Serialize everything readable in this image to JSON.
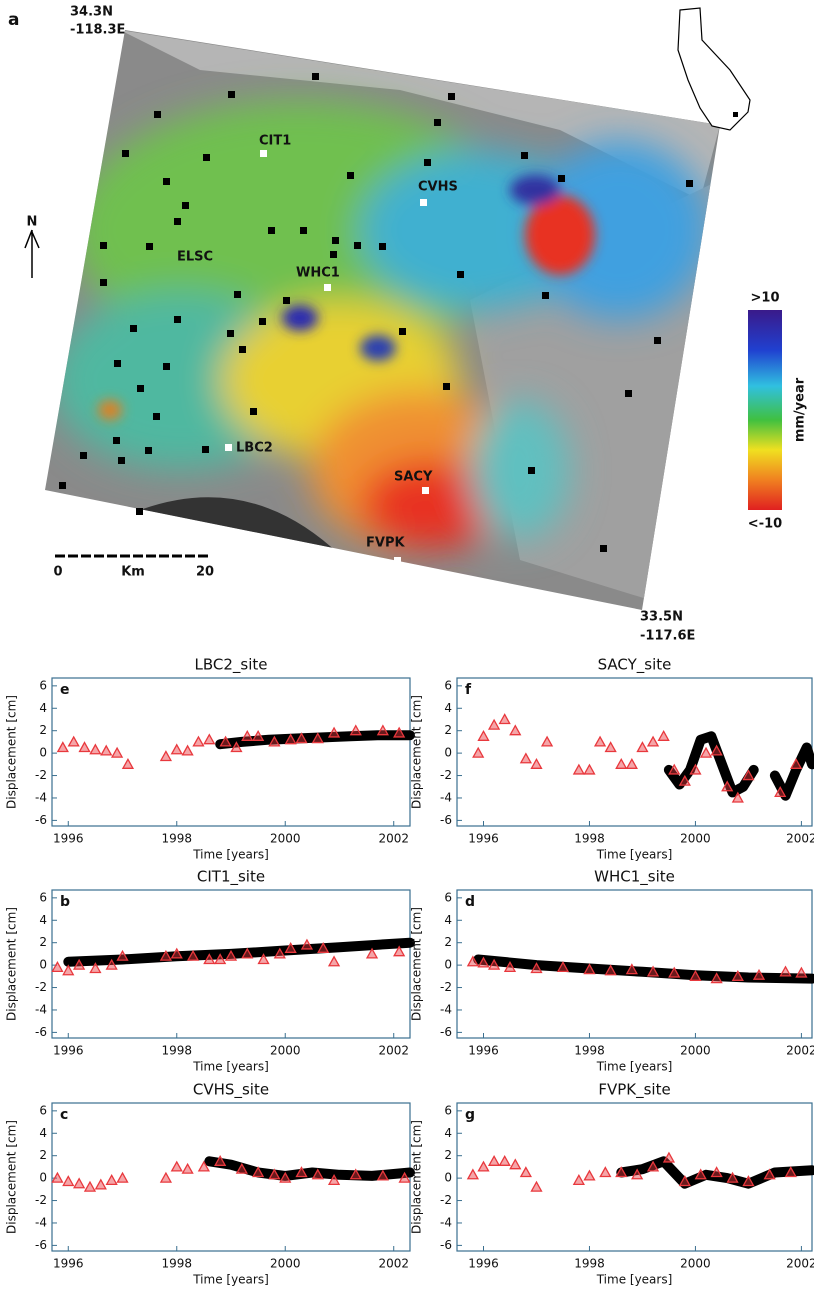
{
  "map": {
    "label": "a",
    "corner_nw": {
      "lat": "34.3N",
      "lon": "-118.3E"
    },
    "corner_se": {
      "lat": "33.5N",
      "lon": "-117.6E"
    },
    "north": "N",
    "colorbar": {
      "max": ">10",
      "min": "<-10",
      "unit": "mm/year"
    },
    "scale": {
      "start": "0",
      "unit": "Km",
      "end": "20"
    },
    "stations": [
      "CIT1",
      "CVHS",
      "ELSC",
      "WHC1",
      "LBC2",
      "SACY",
      "FVPK"
    ]
  },
  "chart_data": [
    {
      "type": "scatter",
      "title": "LBC2_site",
      "panel": "e",
      "x_label": "Time [years]",
      "y_label": "Displacement [cm]",
      "xlim": [
        1995.7,
        2002.3
      ],
      "ylim": [
        -6.5,
        6.7
      ],
      "xticks": [
        1996,
        1998,
        2000,
        2002
      ],
      "yticks": [
        -6,
        -4,
        -2,
        0,
        2,
        4,
        6
      ],
      "series": [
        {
          "marker": "cloud",
          "color": "#000000",
          "x": [
            1998.8,
            1999.2,
            1999.7,
            2000.2,
            2000.7,
            2001.2,
            2001.7,
            2002.3
          ],
          "values": [
            0.8,
            1.0,
            1.2,
            1.3,
            1.4,
            1.5,
            1.6,
            1.6
          ]
        },
        {
          "marker": "triangle",
          "color": "#e8383d",
          "x": [
            1995.9,
            1996.1,
            1996.3,
            1996.5,
            1996.7,
            1996.9,
            1997.1,
            1997.8,
            1998.0,
            1998.2,
            1998.4,
            1998.6,
            1998.9,
            1999.1,
            1999.3,
            1999.5,
            1999.8,
            2000.1,
            2000.3,
            2000.6,
            2000.9,
            2001.3,
            2001.8,
            2002.1
          ],
          "values": [
            0.5,
            1.0,
            0.5,
            0.3,
            0.2,
            0,
            -1.0,
            -0.3,
            0.3,
            0.2,
            1.0,
            1.2,
            1.0,
            0.5,
            1.5,
            1.5,
            1.0,
            1.2,
            1.3,
            1.3,
            1.8,
            2.0,
            2.0,
            1.8
          ]
        }
      ]
    },
    {
      "type": "scatter",
      "title": "SACY_site",
      "panel": "f",
      "x_label": "Time [years]",
      "y_label": "Displacement [cm]",
      "xlim": [
        1995.5,
        2002.2
      ],
      "ylim": [
        -6.5,
        6.7
      ],
      "xticks": [
        1996,
        1998,
        2000,
        2002
      ],
      "yticks": [
        -6,
        -4,
        -2,
        0,
        2,
        4,
        6
      ],
      "series": [
        {
          "marker": "cloud",
          "color": "#000000",
          "x": [
            1999.5,
            1999.7,
            1999.9,
            2000.1,
            2000.3,
            2000.5,
            2000.7,
            2000.9,
            2001.1,
            2001.3,
            2001.5,
            2001.7,
            2001.9,
            2002.1,
            2002.2
          ],
          "values": [
            -1.5,
            -2.8,
            -1.5,
            1.2,
            1.5,
            -1,
            -3.5,
            -3,
            -1.5,
            null,
            -2,
            -3.8,
            -1.5,
            0.5,
            -1
          ]
        },
        {
          "marker": "triangle",
          "color": "#e8383d",
          "x": [
            1995.9,
            1996.0,
            1996.2,
            1996.4,
            1996.6,
            1996.8,
            1997.0,
            1997.2,
            1997.8,
            1998.0,
            1998.2,
            1998.4,
            1998.6,
            1998.8,
            1999.0,
            1999.2,
            1999.4,
            1999.6,
            1999.8,
            2000.0,
            2000.2,
            2000.4,
            2000.6,
            2000.8,
            2001.0,
            2001.6,
            2001.9
          ],
          "values": [
            0,
            1.5,
            2.5,
            3.0,
            2.0,
            -0.5,
            -1.0,
            1.0,
            -1.5,
            -1.5,
            1.0,
            0.5,
            -1.0,
            -1.0,
            0.5,
            1.0,
            1.5,
            -1.5,
            -2.5,
            -1.5,
            0,
            0.2,
            -3.0,
            -4.0,
            -2.0,
            -3.5,
            -1.0
          ]
        }
      ]
    },
    {
      "type": "scatter",
      "title": "CIT1_site",
      "panel": "b",
      "x_label": "Time [years]",
      "y_label": "Displacement [cm]",
      "xlim": [
        1995.7,
        2002.3
      ],
      "ylim": [
        -6.5,
        6.7
      ],
      "xticks": [
        1996,
        1998,
        2000,
        2002
      ],
      "yticks": [
        -6,
        -4,
        -2,
        0,
        2,
        4,
        6
      ],
      "series": [
        {
          "marker": "cloud",
          "color": "#000000",
          "x": [
            1996.0,
            1997.0,
            1998.0,
            1999.0,
            2000.0,
            2001.0,
            2002.3
          ],
          "values": [
            0.3,
            0.5,
            0.8,
            1.0,
            1.3,
            1.6,
            2.0
          ]
        },
        {
          "marker": "triangle",
          "color": "#e8383d",
          "x": [
            1995.8,
            1996.0,
            1996.2,
            1996.5,
            1996.8,
            1997.0,
            1997.8,
            1998.0,
            1998.3,
            1998.6,
            1998.8,
            1999.0,
            1999.3,
            1999.6,
            1999.9,
            2000.1,
            2000.4,
            2000.7,
            2000.9,
            2001.6,
            2002.1
          ],
          "values": [
            -0.2,
            -0.5,
            0,
            -0.3,
            0,
            0.8,
            0.8,
            1.0,
            0.8,
            0.5,
            0.5,
            0.8,
            1.0,
            0.5,
            1.0,
            1.5,
            1.8,
            1.5,
            0.3,
            1.0,
            1.2
          ]
        }
      ]
    },
    {
      "type": "scatter",
      "title": "WHC1_site",
      "panel": "d",
      "x_label": "Time [years]",
      "y_label": "Displacement [cm]",
      "xlim": [
        1995.5,
        2002.2
      ],
      "ylim": [
        -6.5,
        6.7
      ],
      "xticks": [
        1996,
        1998,
        2000,
        2002
      ],
      "yticks": [
        -6,
        -4,
        -2,
        0,
        2,
        4,
        6
      ],
      "series": [
        {
          "marker": "cloud",
          "color": "#000000",
          "x": [
            1995.9,
            1997.0,
            1998.0,
            1999.0,
            2000.0,
            2001.0,
            2002.2
          ],
          "values": [
            0.5,
            0,
            -0.3,
            -0.6,
            -0.9,
            -1.1,
            -1.2
          ]
        },
        {
          "marker": "triangle",
          "color": "#e8383d",
          "x": [
            1995.8,
            1996.0,
            1996.2,
            1996.5,
            1997.0,
            1997.5,
            1998.0,
            1998.4,
            1998.8,
            1999.2,
            1999.6,
            2000.0,
            2000.4,
            2000.8,
            2001.2,
            2001.7,
            2002.0
          ],
          "values": [
            0.3,
            0.2,
            0,
            -0.2,
            -0.3,
            -0.2,
            -0.4,
            -0.5,
            -0.4,
            -0.6,
            -0.7,
            -1.0,
            -1.2,
            -1.0,
            -0.9,
            -0.6,
            -0.7
          ]
        }
      ]
    },
    {
      "type": "scatter",
      "title": "CVHS_site",
      "panel": "c",
      "x_label": "Time [years]",
      "y_label": "Displacement [cm]",
      "xlim": [
        1995.7,
        2002.3
      ],
      "ylim": [
        -6.5,
        6.7
      ],
      "xticks": [
        1996,
        1998,
        2000,
        2002
      ],
      "yticks": [
        -6,
        -4,
        -2,
        0,
        2,
        4,
        6
      ],
      "series": [
        {
          "marker": "cloud",
          "color": "#000000",
          "x": [
            1998.6,
            1999.0,
            1999.5,
            2000.0,
            2000.5,
            2001.0,
            2001.6,
            2002.3
          ],
          "values": [
            1.5,
            1.2,
            0.5,
            0.2,
            0.5,
            0.3,
            0.2,
            0.5
          ]
        },
        {
          "marker": "triangle",
          "color": "#e8383d",
          "x": [
            1995.8,
            1996.0,
            1996.2,
            1996.4,
            1996.6,
            1996.8,
            1997.0,
            1997.8,
            1998.0,
            1998.2,
            1998.5,
            1998.8,
            1999.2,
            1999.5,
            1999.8,
            2000.0,
            2000.3,
            2000.6,
            2000.9,
            2001.3,
            2001.8,
            2002.2
          ],
          "values": [
            0,
            -0.3,
            -0.5,
            -0.8,
            -0.6,
            -0.2,
            0,
            0,
            1.0,
            0.8,
            1.0,
            1.5,
            0.8,
            0.5,
            0.3,
            0,
            0.5,
            0.3,
            -0.2,
            0.3,
            0.2,
            0
          ]
        }
      ]
    },
    {
      "type": "scatter",
      "title": "FVPK_site",
      "panel": "g",
      "x_label": "Time [years]",
      "y_label": "Displacement [cm]",
      "xlim": [
        1995.5,
        2002.2
      ],
      "ylim": [
        -6.5,
        6.7
      ],
      "xticks": [
        1996,
        1998,
        2000,
        2002
      ],
      "yticks": [
        -6,
        -4,
        -2,
        0,
        2,
        4,
        6
      ],
      "series": [
        {
          "marker": "cloud",
          "color": "#000000",
          "x": [
            1998.6,
            1999.0,
            1999.4,
            1999.8,
            2000.2,
            2000.6,
            2001.0,
            2001.5,
            2002.2
          ],
          "values": [
            0.5,
            0.8,
            1.5,
            -0.5,
            0.3,
            0,
            -0.5,
            0.5,
            0.7
          ]
        },
        {
          "marker": "triangle",
          "color": "#e8383d",
          "x": [
            1995.8,
            1996.0,
            1996.2,
            1996.4,
            1996.6,
            1996.8,
            1997.0,
            1997.8,
            1998.0,
            1998.3,
            1998.6,
            1998.9,
            1999.2,
            1999.5,
            1999.8,
            2000.1,
            2000.4,
            2000.7,
            2001.0,
            2001.4,
            2001.8
          ],
          "values": [
            0.3,
            1.0,
            1.5,
            1.5,
            1.2,
            0.5,
            -0.8,
            -0.2,
            0.2,
            0.5,
            0.5,
            0.3,
            1.0,
            1.8,
            -0.3,
            0.3,
            0.5,
            0,
            -0.3,
            0.3,
            0.5
          ]
        }
      ]
    }
  ]
}
